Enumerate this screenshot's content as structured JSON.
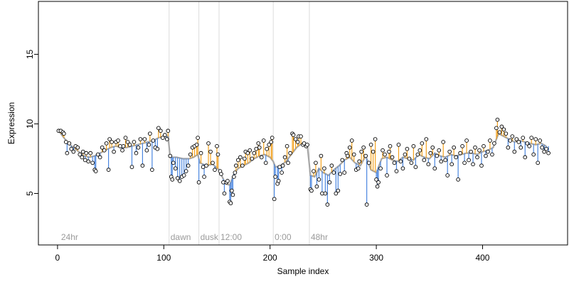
{
  "chart_data": {
    "type": "scatter",
    "xlabel": "Sample index",
    "ylabel": "Expression",
    "xlim": [
      -18,
      480
    ],
    "ylim": [
      1.3,
      18.8
    ],
    "x_ticks": [
      0,
      100,
      200,
      300,
      400
    ],
    "y_ticks": [
      5,
      10,
      15
    ],
    "grid": false,
    "vertical_markers": [
      {
        "label": "24hr",
        "x": 2
      },
      {
        "label": "dawn",
        "x": 105
      },
      {
        "label": "dusk",
        "x": 133
      },
      {
        "label": "12:00",
        "x": 152
      },
      {
        "label": "0:00",
        "x": 203
      },
      {
        "label": "48hr",
        "x": 237
      }
    ],
    "fitted_line": {
      "color": "#a6a6a6",
      "points": [
        [
          2,
          9.4
        ],
        [
          5,
          9.1
        ],
        [
          10,
          8.6
        ],
        [
          15,
          8.3
        ],
        [
          20,
          8.0
        ],
        [
          25,
          7.7
        ],
        [
          30,
          7.6
        ],
        [
          35,
          7.7
        ],
        [
          40,
          7.9
        ],
        [
          45,
          8.1
        ],
        [
          50,
          8.3
        ],
        [
          55,
          8.4
        ],
        [
          60,
          8.3
        ],
        [
          65,
          8.3
        ],
        [
          70,
          8.4
        ],
        [
          75,
          8.5
        ],
        [
          80,
          8.6
        ],
        [
          85,
          8.7
        ],
        [
          90,
          8.8
        ],
        [
          95,
          9.0
        ],
        [
          100,
          9.1
        ],
        [
          104,
          9.1
        ],
        [
          106,
          7.6
        ],
        [
          112,
          7.6
        ],
        [
          118,
          7.5
        ],
        [
          124,
          7.5
        ],
        [
          128,
          7.6
        ],
        [
          132,
          7.8
        ],
        [
          134,
          7.2
        ],
        [
          140,
          7.0
        ],
        [
          146,
          7.1
        ],
        [
          152,
          6.7
        ],
        [
          155,
          6.2
        ],
        [
          158,
          5.7
        ],
        [
          162,
          5.6
        ],
        [
          166,
          6.4
        ],
        [
          170,
          6.8
        ],
        [
          175,
          7.0
        ],
        [
          180,
          7.2
        ],
        [
          185,
          7.5
        ],
        [
          190,
          7.7
        ],
        [
          195,
          7.8
        ],
        [
          200,
          7.6
        ],
        [
          203,
          7.3
        ],
        [
          205,
          6.9
        ],
        [
          210,
          7.0
        ],
        [
          215,
          7.3
        ],
        [
          220,
          7.8
        ],
        [
          225,
          8.3
        ],
        [
          230,
          8.6
        ],
        [
          235,
          8.5
        ],
        [
          238,
          6.3
        ],
        [
          242,
          6.2
        ],
        [
          246,
          6.8
        ],
        [
          250,
          6.5
        ],
        [
          255,
          6.3
        ],
        [
          260,
          6.7
        ],
        [
          265,
          7.0
        ],
        [
          270,
          7.4
        ],
        [
          275,
          7.6
        ],
        [
          280,
          7.2
        ],
        [
          285,
          7.0
        ],
        [
          290,
          7.7
        ],
        [
          295,
          6.7
        ],
        [
          300,
          6.5
        ],
        [
          305,
          7.5
        ],
        [
          310,
          7.6
        ],
        [
          315,
          7.4
        ],
        [
          320,
          7.3
        ],
        [
          325,
          7.6
        ],
        [
          330,
          7.5
        ],
        [
          335,
          7.4
        ],
        [
          340,
          7.8
        ],
        [
          345,
          7.6
        ],
        [
          350,
          7.5
        ],
        [
          355,
          7.9
        ],
        [
          360,
          7.7
        ],
        [
          365,
          7.6
        ],
        [
          370,
          7.8
        ],
        [
          375,
          7.7
        ],
        [
          380,
          7.8
        ],
        [
          385,
          7.9
        ],
        [
          390,
          7.9
        ],
        [
          395,
          7.8
        ],
        [
          400,
          8.0
        ],
        [
          405,
          8.1
        ],
        [
          410,
          8.3
        ],
        [
          415,
          9.3
        ],
        [
          420,
          9.1
        ],
        [
          425,
          8.9
        ],
        [
          430,
          8.7
        ],
        [
          435,
          8.8
        ],
        [
          440,
          8.7
        ],
        [
          445,
          8.6
        ],
        [
          450,
          8.5
        ],
        [
          455,
          8.6
        ],
        [
          460,
          8.4
        ]
      ]
    },
    "points": [
      {
        "x": 1,
        "y": 9.5
      },
      {
        "x": 3,
        "y": 9.5
      },
      {
        "x": 5,
        "y": 9.4
      },
      {
        "x": 6,
        "y": 9.3
      },
      {
        "x": 8,
        "y": 8.7
      },
      {
        "x": 9,
        "y": 7.9
      },
      {
        "x": 11,
        "y": 8.6
      },
      {
        "x": 13,
        "y": 8.2
      },
      {
        "x": 15,
        "y": 8.0
      },
      {
        "x": 17,
        "y": 8.4
      },
      {
        "x": 19,
        "y": 8.3
      },
      {
        "x": 21,
        "y": 7.8
      },
      {
        "x": 23,
        "y": 7.6
      },
      {
        "x": 24,
        "y": 8.0
      },
      {
        "x": 26,
        "y": 7.4
      },
      {
        "x": 27,
        "y": 7.9
      },
      {
        "x": 29,
        "y": 7.3
      },
      {
        "x": 31,
        "y": 7.9
      },
      {
        "x": 33,
        "y": 7.2
      },
      {
        "x": 35,
        "y": 6.7
      },
      {
        "x": 36,
        "y": 6.6
      },
      {
        "x": 38,
        "y": 7.8
      },
      {
        "x": 40,
        "y": 7.6
      },
      {
        "x": 42,
        "y": 8.3
      },
      {
        "x": 44,
        "y": 8.1
      },
      {
        "x": 46,
        "y": 8.6
      },
      {
        "x": 48,
        "y": 6.7
      },
      {
        "x": 49,
        "y": 8.9
      },
      {
        "x": 51,
        "y": 8.7
      },
      {
        "x": 53,
        "y": 8.0
      },
      {
        "x": 55,
        "y": 8.7
      },
      {
        "x": 57,
        "y": 8.8
      },
      {
        "x": 59,
        "y": 8.4
      },
      {
        "x": 61,
        "y": 8.1
      },
      {
        "x": 62,
        "y": 8.4
      },
      {
        "x": 64,
        "y": 9.0
      },
      {
        "x": 66,
        "y": 8.7
      },
      {
        "x": 68,
        "y": 8.5
      },
      {
        "x": 70,
        "y": 6.9
      },
      {
        "x": 72,
        "y": 8.7
      },
      {
        "x": 74,
        "y": 7.9
      },
      {
        "x": 76,
        "y": 8.3
      },
      {
        "x": 78,
        "y": 8.9
      },
      {
        "x": 80,
        "y": 7.0
      },
      {
        "x": 82,
        "y": 8.9
      },
      {
        "x": 84,
        "y": 8.1
      },
      {
        "x": 86,
        "y": 8.5
      },
      {
        "x": 87,
        "y": 9.3
      },
      {
        "x": 89,
        "y": 6.7
      },
      {
        "x": 90,
        "y": 8.8
      },
      {
        "x": 92,
        "y": 8.3
      },
      {
        "x": 94,
        "y": 8.2
      },
      {
        "x": 95,
        "y": 9.7
      },
      {
        "x": 97,
        "y": 9.5
      },
      {
        "x": 99,
        "y": 9.0
      },
      {
        "x": 101,
        "y": 9.2
      },
      {
        "x": 103,
        "y": 8.9
      },
      {
        "x": 104,
        "y": 9.5
      },
      {
        "x": 106,
        "y": 7.7
      },
      {
        "x": 107,
        "y": 6.2
      },
      {
        "x": 108,
        "y": 6.0
      },
      {
        "x": 109,
        "y": 7.2
      },
      {
        "x": 111,
        "y": 6.8
      },
      {
        "x": 113,
        "y": 6.1
      },
      {
        "x": 115,
        "y": 5.9
      },
      {
        "x": 117,
        "y": 6.2
      },
      {
        "x": 119,
        "y": 6.3
      },
      {
        "x": 121,
        "y": 6.6
      },
      {
        "x": 123,
        "y": 7.0
      },
      {
        "x": 125,
        "y": 7.8
      },
      {
        "x": 127,
        "y": 8.3
      },
      {
        "x": 129,
        "y": 8.4
      },
      {
        "x": 131,
        "y": 8.5
      },
      {
        "x": 132,
        "y": 9.0
      },
      {
        "x": 133,
        "y": 5.8
      },
      {
        "x": 135,
        "y": 7.9
      },
      {
        "x": 137,
        "y": 6.9
      },
      {
        "x": 138,
        "y": 6.2
      },
      {
        "x": 140,
        "y": 7.0
      },
      {
        "x": 142,
        "y": 8.6
      },
      {
        "x": 144,
        "y": 8.0
      },
      {
        "x": 146,
        "y": 7.2
      },
      {
        "x": 148,
        "y": 6.7
      },
      {
        "x": 150,
        "y": 8.4
      },
      {
        "x": 151,
        "y": 7.8
      },
      {
        "x": 153,
        "y": 6.6
      },
      {
        "x": 154,
        "y": 6.4
      },
      {
        "x": 156,
        "y": 5.8
      },
      {
        "x": 157,
        "y": 5.0
      },
      {
        "x": 159,
        "y": 5.8
      },
      {
        "x": 160,
        "y": 5.9
      },
      {
        "x": 162,
        "y": 4.4
      },
      {
        "x": 163,
        "y": 4.3
      },
      {
        "x": 164,
        "y": 5.2
      },
      {
        "x": 165,
        "y": 4.9
      },
      {
        "x": 166,
        "y": 6.2
      },
      {
        "x": 167,
        "y": 6.5
      },
      {
        "x": 168,
        "y": 7.0
      },
      {
        "x": 170,
        "y": 7.4
      },
      {
        "x": 172,
        "y": 7.6
      },
      {
        "x": 174,
        "y": 7.0
      },
      {
        "x": 176,
        "y": 7.5
      },
      {
        "x": 177,
        "y": 8.0
      },
      {
        "x": 179,
        "y": 7.9
      },
      {
        "x": 181,
        "y": 8.1
      },
      {
        "x": 183,
        "y": 7.5
      },
      {
        "x": 185,
        "y": 7.9
      },
      {
        "x": 187,
        "y": 8.2
      },
      {
        "x": 189,
        "y": 8.6
      },
      {
        "x": 190,
        "y": 8.3
      },
      {
        "x": 192,
        "y": 7.6
      },
      {
        "x": 194,
        "y": 8.8
      },
      {
        "x": 196,
        "y": 7.2
      },
      {
        "x": 197,
        "y": 8.2
      },
      {
        "x": 199,
        "y": 8.5
      },
      {
        "x": 201,
        "y": 8.7
      },
      {
        "x": 202,
        "y": 9.0
      },
      {
        "x": 204,
        "y": 4.6
      },
      {
        "x": 205,
        "y": 6.2
      },
      {
        "x": 207,
        "y": 5.7
      },
      {
        "x": 208,
        "y": 5.9
      },
      {
        "x": 209,
        "y": 6.9
      },
      {
        "x": 211,
        "y": 6.5
      },
      {
        "x": 212,
        "y": 7.0
      },
      {
        "x": 214,
        "y": 7.6
      },
      {
        "x": 216,
        "y": 8.4
      },
      {
        "x": 217,
        "y": 7.2
      },
      {
        "x": 219,
        "y": 7.9
      },
      {
        "x": 221,
        "y": 9.3
      },
      {
        "x": 222,
        "y": 9.2
      },
      {
        "x": 224,
        "y": 8.9
      },
      {
        "x": 226,
        "y": 8.7
      },
      {
        "x": 227,
        "y": 9.1
      },
      {
        "x": 229,
        "y": 9.1
      },
      {
        "x": 231,
        "y": 8.5
      },
      {
        "x": 232,
        "y": 8.6
      },
      {
        "x": 234,
        "y": 8.4
      },
      {
        "x": 235,
        "y": 8.5
      },
      {
        "x": 238,
        "y": 5.3
      },
      {
        "x": 239,
        "y": 5.2
      },
      {
        "x": 241,
        "y": 6.6
      },
      {
        "x": 243,
        "y": 7.2
      },
      {
        "x": 244,
        "y": 5.5
      },
      {
        "x": 246,
        "y": 6.0
      },
      {
        "x": 248,
        "y": 7.7
      },
      {
        "x": 249,
        "y": 5.0
      },
      {
        "x": 251,
        "y": 6.8
      },
      {
        "x": 252,
        "y": 5.0
      },
      {
        "x": 254,
        "y": 4.2
      },
      {
        "x": 256,
        "y": 5.8
      },
      {
        "x": 258,
        "y": 7.0
      },
      {
        "x": 260,
        "y": 6.5
      },
      {
        "x": 262,
        "y": 5.0
      },
      {
        "x": 264,
        "y": 5.2
      },
      {
        "x": 266,
        "y": 6.4
      },
      {
        "x": 268,
        "y": 7.4
      },
      {
        "x": 270,
        "y": 6.5
      },
      {
        "x": 272,
        "y": 7.9
      },
      {
        "x": 273,
        "y": 7.7
      },
      {
        "x": 275,
        "y": 8.3
      },
      {
        "x": 277,
        "y": 8.8
      },
      {
        "x": 279,
        "y": 7.8
      },
      {
        "x": 281,
        "y": 6.7
      },
      {
        "x": 283,
        "y": 6.8
      },
      {
        "x": 284,
        "y": 7.3
      },
      {
        "x": 286,
        "y": 8.0
      },
      {
        "x": 288,
        "y": 8.3
      },
      {
        "x": 290,
        "y": 7.7
      },
      {
        "x": 291,
        "y": 4.2
      },
      {
        "x": 293,
        "y": 7.2
      },
      {
        "x": 295,
        "y": 8.5
      },
      {
        "x": 297,
        "y": 8.0
      },
      {
        "x": 299,
        "y": 8.9
      },
      {
        "x": 300,
        "y": 6.0
      },
      {
        "x": 301,
        "y": 5.5
      },
      {
        "x": 302,
        "y": 5.8
      },
      {
        "x": 304,
        "y": 6.8
      },
      {
        "x": 306,
        "y": 8.1
      },
      {
        "x": 308,
        "y": 7.8
      },
      {
        "x": 310,
        "y": 6.3
      },
      {
        "x": 312,
        "y": 8.0
      },
      {
        "x": 313,
        "y": 8.4
      },
      {
        "x": 315,
        "y": 7.6
      },
      {
        "x": 317,
        "y": 7.2
      },
      {
        "x": 319,
        "y": 6.6
      },
      {
        "x": 321,
        "y": 8.5
      },
      {
        "x": 323,
        "y": 7.3
      },
      {
        "x": 325,
        "y": 6.8
      },
      {
        "x": 327,
        "y": 7.8
      },
      {
        "x": 329,
        "y": 8.2
      },
      {
        "x": 331,
        "y": 7.5
      },
      {
        "x": 333,
        "y": 7.2
      },
      {
        "x": 335,
        "y": 8.4
      },
      {
        "x": 337,
        "y": 6.9
      },
      {
        "x": 339,
        "y": 7.8
      },
      {
        "x": 341,
        "y": 8.1
      },
      {
        "x": 343,
        "y": 8.6
      },
      {
        "x": 345,
        "y": 7.4
      },
      {
        "x": 347,
        "y": 8.9
      },
      {
        "x": 349,
        "y": 7.1
      },
      {
        "x": 351,
        "y": 7.9
      },
      {
        "x": 353,
        "y": 8.3
      },
      {
        "x": 355,
        "y": 6.8
      },
      {
        "x": 357,
        "y": 7.7
      },
      {
        "x": 359,
        "y": 8.1
      },
      {
        "x": 361,
        "y": 7.3
      },
      {
        "x": 363,
        "y": 8.7
      },
      {
        "x": 365,
        "y": 7.4
      },
      {
        "x": 367,
        "y": 6.3
      },
      {
        "x": 369,
        "y": 8.0
      },
      {
        "x": 371,
        "y": 7.1
      },
      {
        "x": 373,
        "y": 8.3
      },
      {
        "x": 375,
        "y": 7.6
      },
      {
        "x": 377,
        "y": 6.0
      },
      {
        "x": 379,
        "y": 7.9
      },
      {
        "x": 381,
        "y": 8.4
      },
      {
        "x": 383,
        "y": 7.2
      },
      {
        "x": 385,
        "y": 8.8
      },
      {
        "x": 387,
        "y": 7.4
      },
      {
        "x": 389,
        "y": 8.0
      },
      {
        "x": 391,
        "y": 7.1
      },
      {
        "x": 393,
        "y": 8.3
      },
      {
        "x": 395,
        "y": 7.6
      },
      {
        "x": 397,
        "y": 8.1
      },
      {
        "x": 399,
        "y": 7.0
      },
      {
        "x": 401,
        "y": 8.4
      },
      {
        "x": 403,
        "y": 7.7
      },
      {
        "x": 405,
        "y": 8.0
      },
      {
        "x": 407,
        "y": 8.8
      },
      {
        "x": 409,
        "y": 7.8
      },
      {
        "x": 411,
        "y": 8.6
      },
      {
        "x": 413,
        "y": 9.7
      },
      {
        "x": 414,
        "y": 10.3
      },
      {
        "x": 416,
        "y": 9.4
      },
      {
        "x": 418,
        "y": 9.8
      },
      {
        "x": 420,
        "y": 9.6
      },
      {
        "x": 422,
        "y": 9.3
      },
      {
        "x": 424,
        "y": 8.3
      },
      {
        "x": 426,
        "y": 8.8
      },
      {
        "x": 428,
        "y": 9.1
      },
      {
        "x": 430,
        "y": 8.0
      },
      {
        "x": 432,
        "y": 8.9
      },
      {
        "x": 434,
        "y": 8.7
      },
      {
        "x": 436,
        "y": 8.3
      },
      {
        "x": 438,
        "y": 9.0
      },
      {
        "x": 440,
        "y": 7.6
      },
      {
        "x": 442,
        "y": 8.6
      },
      {
        "x": 444,
        "y": 8.4
      },
      {
        "x": 446,
        "y": 9.0
      },
      {
        "x": 448,
        "y": 7.8
      },
      {
        "x": 450,
        "y": 8.9
      },
      {
        "x": 452,
        "y": 7.2
      },
      {
        "x": 454,
        "y": 8.8
      },
      {
        "x": 456,
        "y": 8.3
      },
      {
        "x": 458,
        "y": 8.0
      },
      {
        "x": 460,
        "y": 8.2
      },
      {
        "x": 462,
        "y": 7.9
      }
    ],
    "colors": {
      "above_fit": "#f4a21e",
      "below_fit": "#4a86e0",
      "fitted_line": "#a6a6a6",
      "marker_line": "#dcdcdc",
      "marker_label": "#9a9a9a",
      "point_edge": "#000000",
      "point_fill": "#ffffff"
    }
  }
}
